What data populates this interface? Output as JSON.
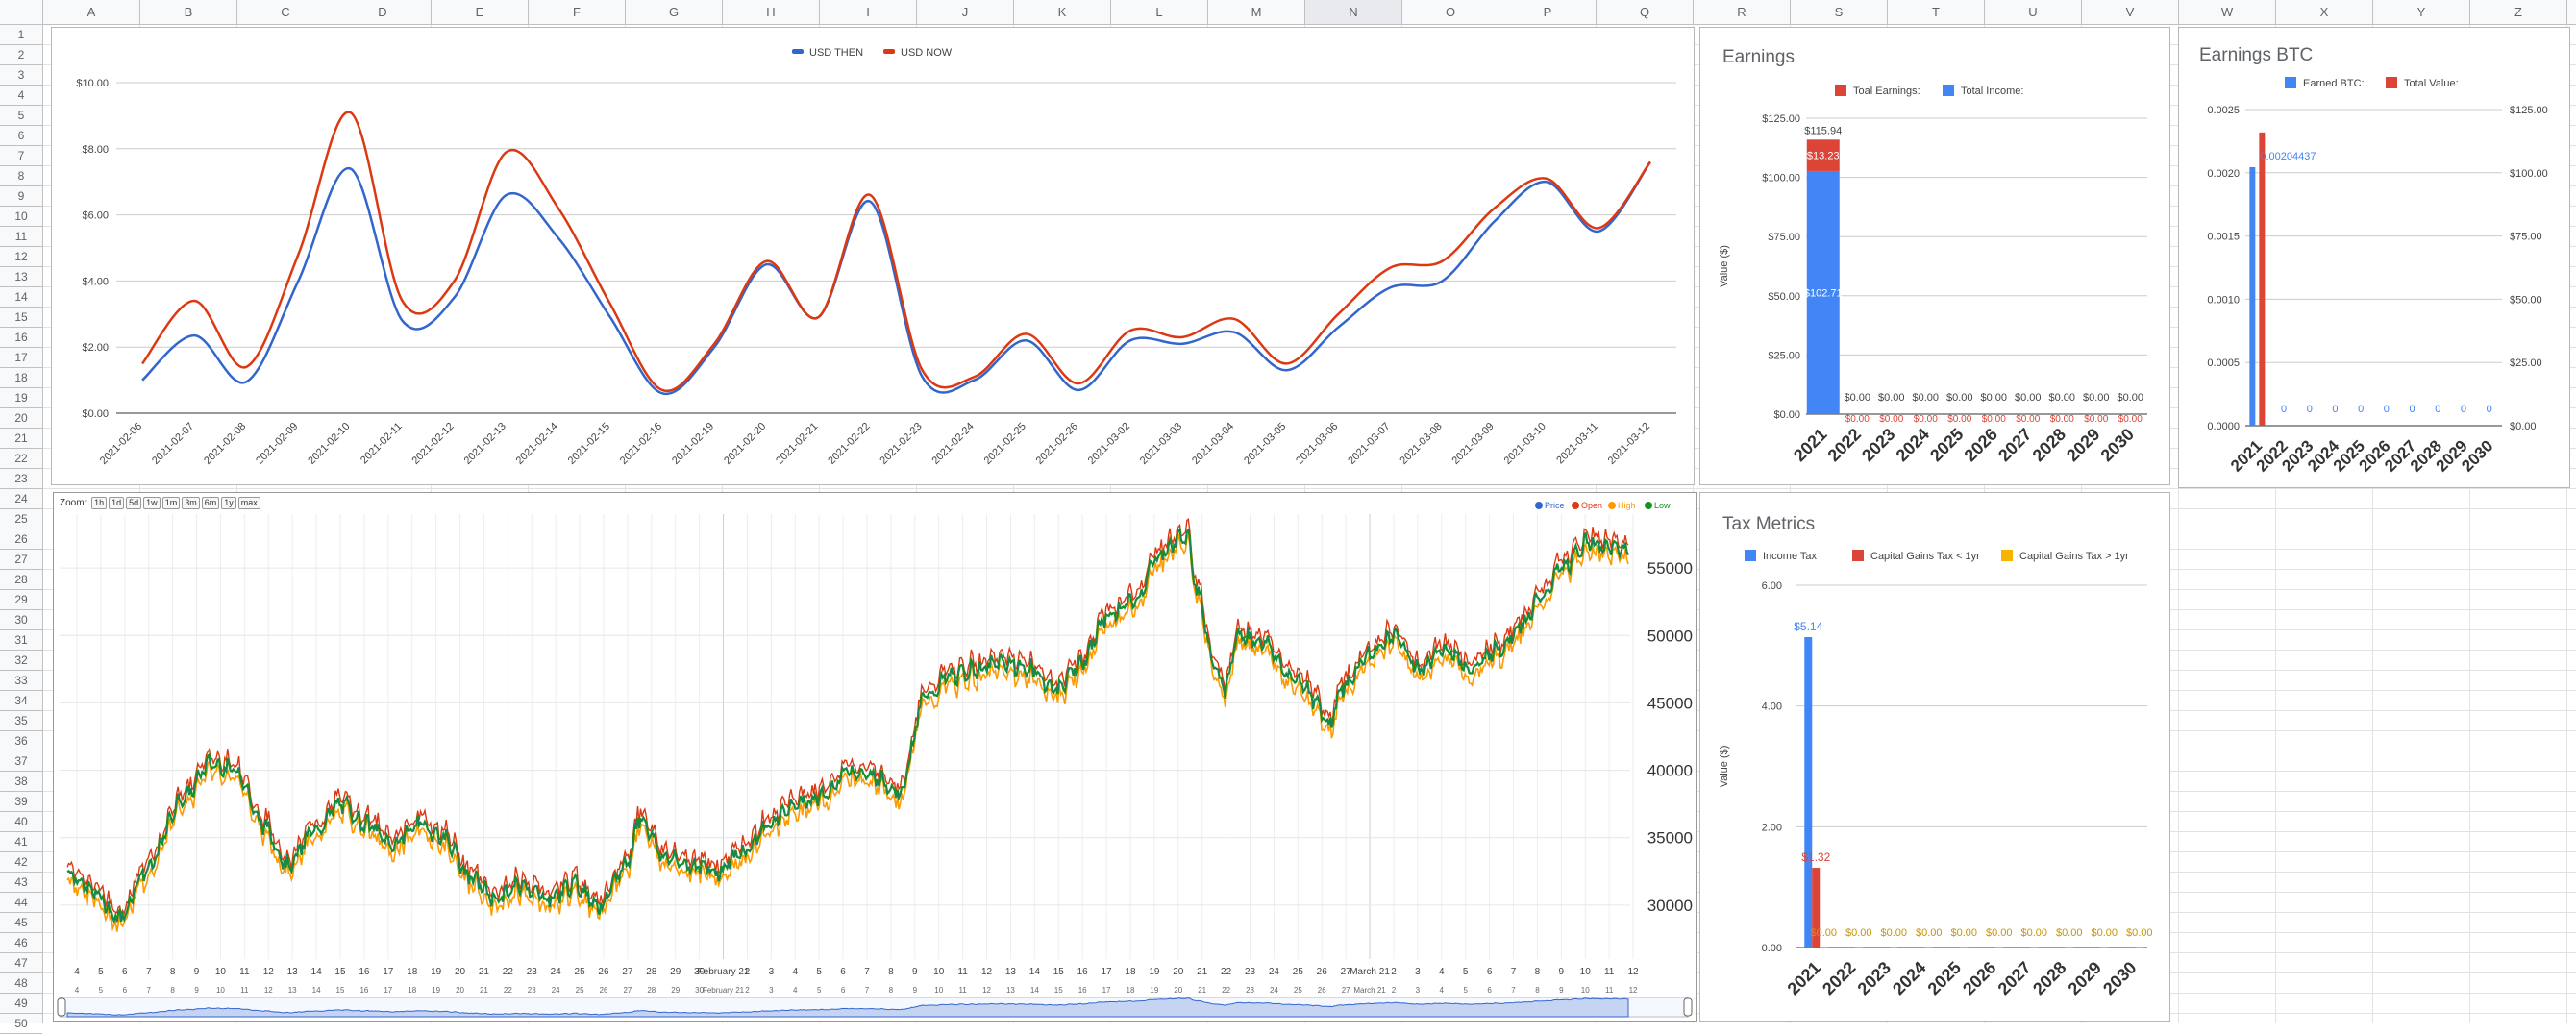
{
  "sheet": {
    "columns": [
      "A",
      "B",
      "C",
      "D",
      "E",
      "F",
      "G",
      "H",
      "I",
      "J",
      "K",
      "L",
      "M",
      "N",
      "O",
      "P",
      "Q",
      "R",
      "S",
      "T",
      "U",
      "V",
      "W",
      "X",
      "Y",
      "Z"
    ],
    "selected_column": "N",
    "rows": [
      "1",
      "2",
      "3",
      "4",
      "5",
      "6",
      "7",
      "8",
      "9",
      "10",
      "11",
      "12",
      "13",
      "14",
      "15",
      "16",
      "17",
      "18",
      "19",
      "20",
      "21",
      "22",
      "23",
      "24",
      "25",
      "26",
      "27",
      "28",
      "29",
      "30",
      "31",
      "32",
      "33",
      "34",
      "35",
      "36",
      "37",
      "38",
      "39",
      "40",
      "41",
      "42",
      "43",
      "44",
      "45",
      "46",
      "47",
      "48",
      "49",
      "50"
    ]
  },
  "line_chart": {
    "legend": [
      {
        "label": "USD THEN",
        "color": "#3366cc"
      },
      {
        "label": "USD NOW",
        "color": "#dc3912"
      }
    ],
    "chart_data": {
      "type": "line",
      "x": [
        "2021-02-06",
        "2021-02-07",
        "2021-02-08",
        "2021-02-09",
        "2021-02-10",
        "2021-02-11",
        "2021-02-12",
        "2021-02-13",
        "2021-02-14",
        "2021-02-15",
        "2021-02-16",
        "2021-02-19",
        "2021-02-20",
        "2021-02-21",
        "2021-02-22",
        "2021-02-23",
        "2021-02-24",
        "2021-02-25",
        "2021-02-26",
        "2021-03-02",
        "2021-03-03",
        "2021-03-04",
        "2021-03-05",
        "2021-03-06",
        "2021-03-07",
        "2021-03-08",
        "2021-03-09",
        "2021-03-10",
        "2021-03-11",
        "2021-03-12"
      ],
      "series": [
        {
          "name": "USD THEN",
          "values": [
            1.0,
            2.35,
            0.95,
            4.0,
            7.4,
            2.8,
            3.5,
            6.6,
            5.3,
            2.9,
            0.6,
            2.0,
            4.5,
            2.9,
            6.4,
            1.1,
            1.0,
            2.2,
            0.7,
            2.2,
            2.1,
            2.45,
            1.3,
            2.6,
            3.8,
            4.0,
            5.8,
            7.0,
            5.5,
            7.6
          ]
        },
        {
          "name": "USD NOW",
          "values": [
            1.5,
            3.4,
            1.4,
            4.8,
            9.1,
            3.4,
            4.0,
            7.9,
            6.2,
            3.3,
            0.7,
            2.1,
            4.6,
            2.9,
            6.6,
            1.3,
            1.1,
            2.4,
            0.9,
            2.5,
            2.3,
            2.85,
            1.5,
            3.0,
            4.4,
            4.6,
            6.2,
            7.1,
            5.6,
            7.6
          ]
        }
      ],
      "yticks": [
        "$0.00",
        "$2.00",
        "$4.00",
        "$6.00",
        "$8.00",
        "$10.00"
      ],
      "ylim": [
        0,
        10
      ]
    }
  },
  "earnings_chart": {
    "title": "Earnings",
    "legend": [
      {
        "label": "Toal Earnings:",
        "color": "#db4437"
      },
      {
        "label": "Total Income:",
        "color": "#4285f4"
      }
    ],
    "ylabel": "Value ($)",
    "chart_data": {
      "type": "bar",
      "categories": [
        "2021",
        "2022",
        "2023",
        "2024",
        "2025",
        "2026",
        "2027",
        "2028",
        "2029",
        "2030"
      ],
      "series": [
        {
          "name": "Total Income:",
          "values": [
            102.71,
            0,
            0,
            0,
            0,
            0,
            0,
            0,
            0,
            0
          ]
        },
        {
          "name": "Toal Earnings:",
          "values": [
            13.23,
            0,
            0,
            0,
            0,
            0,
            0,
            0,
            0,
            0
          ]
        }
      ],
      "total_labels": [
        "$115.94",
        "$0.00",
        "$0.00",
        "$0.00",
        "$0.00",
        "$0.00",
        "$0.00",
        "$0.00",
        "$0.00",
        "$0.00"
      ],
      "income_labels": [
        "$102.71",
        "$0.00",
        "$0.00",
        "$0.00",
        "$0.00",
        "$0.00",
        "$0.00",
        "$0.00",
        "$0.00",
        "$0.00"
      ],
      "earn_labels": [
        "$13.23",
        "$0.00",
        "$0.00",
        "$0.00",
        "$0.00",
        "$0.00",
        "$0.00",
        "$0.00",
        "$0.00",
        "$0.00"
      ],
      "yticks": [
        "$0.00",
        "$25.00",
        "$50.00",
        "$75.00",
        "$100.00",
        "$125.00"
      ],
      "ylim": [
        0,
        125
      ]
    }
  },
  "btc_chart": {
    "title": "Earnings BTC",
    "legend": [
      {
        "label": "Earned BTC:",
        "color": "#4285f4"
      },
      {
        "label": "Total Value:",
        "color": "#db4437"
      }
    ],
    "chart_data": {
      "type": "bar",
      "categories": [
        "2021",
        "2022",
        "2023",
        "2024",
        "2025",
        "2026",
        "2027",
        "2028",
        "2029",
        "2030"
      ],
      "series": [
        {
          "name": "Earned BTC:",
          "values": [
            0.00204437,
            0,
            0,
            0,
            0,
            0,
            0,
            0,
            0,
            0
          ]
        },
        {
          "name": "Total Value:",
          "values": [
            115.94,
            0,
            0,
            0,
            0,
            0,
            0,
            0,
            0,
            0
          ]
        }
      ],
      "labels": [
        "0.00204437",
        "0",
        "0",
        "0",
        "0",
        "0",
        "0",
        "0",
        "0",
        "0"
      ],
      "yticks_left": [
        "0.0000",
        "0.0005",
        "0.0010",
        "0.0015",
        "0.0020",
        "0.0025"
      ],
      "yticks_right": [
        "$0.00",
        "$25.00",
        "$50.00",
        "$75.00",
        "$100.00",
        "$125.00"
      ],
      "ylim_left": [
        0,
        0.0025
      ],
      "ylim_right": [
        0,
        125
      ]
    }
  },
  "tax_chart": {
    "title": "Tax Metrics",
    "legend": [
      {
        "label": "Income Tax",
        "color": "#4285f4"
      },
      {
        "label": "Capital Gains Tax < 1yr",
        "color": "#db4437"
      },
      {
        "label": "Capital Gains Tax > 1yr",
        "color": "#f4b400"
      }
    ],
    "ylabel": "Value ($)",
    "chart_data": {
      "type": "bar",
      "categories": [
        "2021",
        "2022",
        "2023",
        "2024",
        "2025",
        "2026",
        "2027",
        "2028",
        "2029",
        "2030"
      ],
      "series": [
        {
          "name": "Income Tax",
          "values": [
            5.14,
            0,
            0,
            0,
            0,
            0,
            0,
            0,
            0,
            0
          ]
        },
        {
          "name": "Capital Gains Tax < 1yr",
          "values": [
            1.32,
            0,
            0,
            0,
            0,
            0,
            0,
            0,
            0,
            0
          ]
        },
        {
          "name": "Capital Gains Tax > 1yr",
          "values": [
            0,
            0,
            0,
            0,
            0,
            0,
            0,
            0,
            0,
            0
          ]
        }
      ],
      "income_labels": [
        "$5.14"
      ],
      "cg_labels": [
        "$1.32"
      ],
      "zero_labels": [
        "$0.00",
        "$0.00",
        "$0.00",
        "$0.00",
        "$0.00",
        "$0.00",
        "$0.00",
        "$0.00",
        "$0.00",
        "$0.00"
      ],
      "yticks": [
        "0.00",
        "2.00",
        "4.00",
        "6.00"
      ],
      "ylim": [
        0,
        6
      ]
    }
  },
  "price_chart": {
    "zoom_label": "Zoom:",
    "zoom_buttons": [
      "1h",
      "1d",
      "5d",
      "1w",
      "1m",
      "3m",
      "6m",
      "1y",
      "max"
    ],
    "legend": [
      {
        "label": "Price",
        "color": "#3366cc"
      },
      {
        "label": "Open",
        "color": "#dc3912"
      },
      {
        "label": "High",
        "color": "#ff9900"
      },
      {
        "label": "Low",
        "color": "#109618"
      }
    ],
    "chart_data": {
      "type": "line",
      "yticks": [
        "30000",
        "35000",
        "40000",
        "45000",
        "50000",
        "55000"
      ],
      "ylim": [
        26000,
        59000
      ],
      "xticks": [
        "4",
        "5",
        "6",
        "7",
        "8",
        "9",
        "10",
        "11",
        "12",
        "13",
        "14",
        "15",
        "16",
        "17",
        "18",
        "19",
        "20",
        "21",
        "22",
        "23",
        "24",
        "25",
        "26",
        "27",
        "28",
        "29",
        "30",
        "February 21",
        "2",
        "3",
        "4",
        "5",
        "6",
        "7",
        "8",
        "9",
        "10",
        "11",
        "12",
        "13",
        "14",
        "15",
        "16",
        "17",
        "18",
        "19",
        "20",
        "21",
        "22",
        "23",
        "24",
        "25",
        "26",
        "27",
        "March 21",
        "2",
        "3",
        "4",
        "5",
        "6",
        "7",
        "8",
        "9",
        "10",
        "11",
        "12"
      ],
      "keypoints": [
        [
          0,
          32500
        ],
        [
          2,
          31000
        ],
        [
          4,
          29000
        ],
        [
          6,
          32500
        ],
        [
          9,
          38000
        ],
        [
          11,
          40500
        ],
        [
          13,
          40000
        ],
        [
          15,
          36000
        ],
        [
          17,
          33000
        ],
        [
          19,
          35500
        ],
        [
          21,
          37500
        ],
        [
          23,
          36000
        ],
        [
          25,
          34500
        ],
        [
          27,
          36000
        ],
        [
          29,
          35000
        ],
        [
          31,
          32000
        ],
        [
          33,
          30500
        ],
        [
          35,
          31500
        ],
        [
          37,
          30500
        ],
        [
          39,
          31500
        ],
        [
          41,
          30000
        ],
        [
          43,
          33000
        ],
        [
          44,
          36500
        ],
        [
          46,
          33500
        ],
        [
          48,
          33000
        ],
        [
          50,
          32500
        ],
        [
          52,
          34000
        ],
        [
          54,
          36000
        ],
        [
          56,
          37500
        ],
        [
          58,
          38000
        ],
        [
          60,
          40000
        ],
        [
          62,
          39500
        ],
        [
          64,
          38500
        ],
        [
          66,
          45500
        ],
        [
          68,
          47000
        ],
        [
          70,
          47500
        ],
        [
          72,
          48000
        ],
        [
          74,
          47500
        ],
        [
          76,
          46000
        ],
        [
          78,
          48000
        ],
        [
          80,
          51500
        ],
        [
          82,
          52500
        ],
        [
          84,
          56000
        ],
        [
          86,
          57500
        ],
        [
          87,
          53000
        ],
        [
          88,
          48500
        ],
        [
          89,
          46000
        ],
        [
          90,
          50000
        ],
        [
          92,
          49500
        ],
        [
          94,
          47000
        ],
        [
          95,
          46500
        ],
        [
          96,
          45000
        ],
        [
          97,
          43500
        ],
        [
          98,
          46000
        ],
        [
          100,
          48500
        ],
        [
          102,
          50000
        ],
        [
          104,
          47500
        ],
        [
          106,
          49000
        ],
        [
          108,
          47500
        ],
        [
          110,
          49000
        ],
        [
          112,
          51000
        ],
        [
          113,
          52500
        ],
        [
          115,
          55000
        ],
        [
          117,
          57000
        ],
        [
          118,
          56500
        ],
        [
          120,
          56500
        ]
      ]
    }
  }
}
